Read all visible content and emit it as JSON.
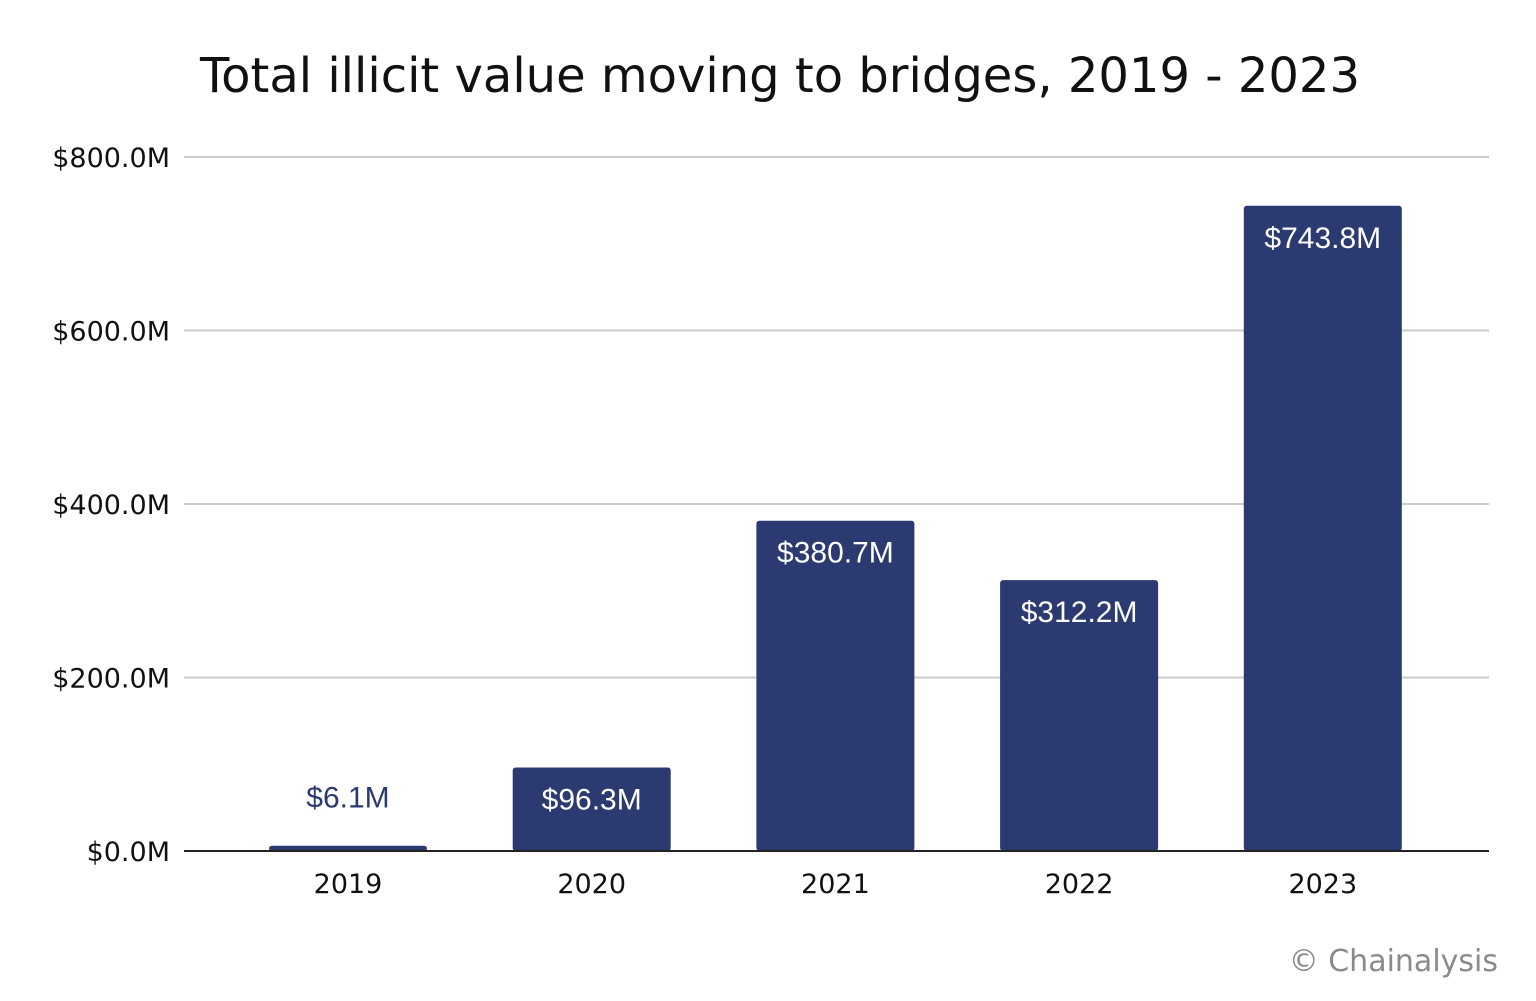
{
  "chart_data": {
    "type": "bar",
    "title": "Total illicit value moving to bridges, 2019 - 2023",
    "categories": [
      "2019",
      "2020",
      "2021",
      "2022",
      "2023"
    ],
    "values": [
      6.1,
      96.3,
      380.7,
      312.2,
      743.8
    ],
    "value_labels": [
      "$6.1M",
      "$96.3M",
      "$380.7M",
      "$312.2M",
      "$743.8M"
    ],
    "y_ticks": [
      "$0.0M",
      "$200.0M",
      "$400.0M",
      "$600.0M",
      "$800.0M"
    ],
    "ylim": [
      0,
      800
    ],
    "grid": true,
    "bar_color": "#2b3a70",
    "label_colors": {
      "inside": "#ffffff",
      "outside": "#2b3a70"
    }
  },
  "watermark": "© Chainalysis"
}
